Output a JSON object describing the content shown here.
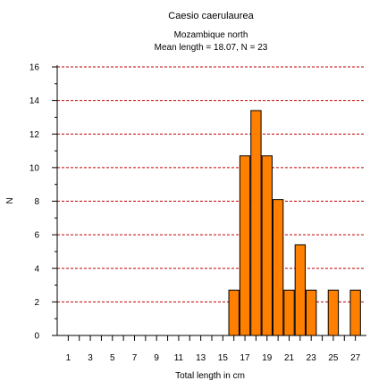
{
  "chart_data": {
    "type": "bar",
    "title": "Caesio caerulaurea",
    "subtitle_line1": "Mozambique north",
    "subtitle_line2": "Mean length = 18.07, N = 23",
    "xlabel": "Total length in cm",
    "ylabel": "N",
    "x_tick_labels": [
      "1",
      "3",
      "5",
      "7",
      "9",
      "11",
      "13",
      "15",
      "17",
      "19",
      "21",
      "23",
      "25",
      "27"
    ],
    "y_tick_labels": [
      "0",
      "2",
      "4",
      "6",
      "8",
      "10",
      "12",
      "14",
      "16"
    ],
    "xlim": [
      0,
      28
    ],
    "ylim": [
      0,
      16
    ],
    "grid": "horizontal dashed",
    "bar_color": "#ff8000",
    "grid_color": "#c00000",
    "bins": [
      {
        "x": 16,
        "value": 2.7
      },
      {
        "x": 17,
        "value": 10.7
      },
      {
        "x": 18,
        "value": 13.4
      },
      {
        "x": 19,
        "value": 10.7
      },
      {
        "x": 20,
        "value": 8.1
      },
      {
        "x": 21,
        "value": 2.7
      },
      {
        "x": 22,
        "value": 5.4
      },
      {
        "x": 23,
        "value": 2.7
      },
      {
        "x": 25,
        "value": 2.7
      },
      {
        "x": 27,
        "value": 2.7
      }
    ]
  }
}
